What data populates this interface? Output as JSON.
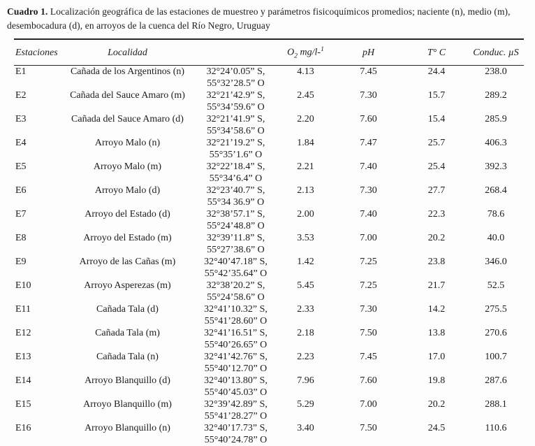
{
  "caption": {
    "label": "Cuadro 1.",
    "line1": "Localización geográfica de las estaciones de muestreo y parámetros fisicoquímicos promedios; naciente (n), medio (m),",
    "line2": "desembocadura (d), en arroyos de la cuenca del Río Negro, Uruguay"
  },
  "table": {
    "headers": {
      "station": "Estaciones",
      "locality": "Localidad",
      "coords": "",
      "o2_element": "O",
      "o2_sub": "2",
      "o2_unit": " mg/l-",
      "o2_sup": "1",
      "ph": "pH",
      "temp": "T° C",
      "conduc": "Conduc. µS"
    },
    "rows": [
      {
        "station": "E1",
        "locality": "Cañada de los Argentinos (n)",
        "coord_s": "32°24’0.05” S,",
        "coord_o": "55°32’28.5” O",
        "o2": "4.13",
        "ph": "7.45",
        "temp": "24.4",
        "conduc": "238.0"
      },
      {
        "station": "E2",
        "locality": "Cañada del Sauce Amaro (m)",
        "coord_s": "32°21’42.9” S,",
        "coord_o": "55°34’59.6” O",
        "o2": "2.45",
        "ph": "7.30",
        "temp": "15.7",
        "conduc": "289.2"
      },
      {
        "station": "E3",
        "locality": "Cañada del Sauce Amaro (d)",
        "coord_s": "32°21’41.9” S,",
        "coord_o": "55°34’58.6” O",
        "o2": "2.20",
        "ph": "7.60",
        "temp": "15.4",
        "conduc": "285.9"
      },
      {
        "station": "E4",
        "locality": "Arroyo Malo (n)",
        "coord_s": "32°21’19.2” S,",
        "coord_o": "55°35’1.6” O",
        "o2": "1.84",
        "ph": "7.47",
        "temp": "25.7",
        "conduc": "406.3"
      },
      {
        "station": "E5",
        "locality": "Arroyo Malo (m)",
        "coord_s": "32°22’18.4” S,",
        "coord_o": "55°34’6.4” O",
        "o2": "2.21",
        "ph": "7.40",
        "temp": "25.4",
        "conduc": "392.3"
      },
      {
        "station": "E6",
        "locality": "Arroyo Malo (d)",
        "coord_s": "32°23’40.7” S,",
        "coord_o": "55°34 36.9” O",
        "o2": "2.13",
        "ph": "7.30",
        "temp": "27.7",
        "conduc": "268.4"
      },
      {
        "station": "E7",
        "locality": "Arroyo del Estado (d)",
        "coord_s": "32°38’57.1” S,",
        "coord_o": "55°24’48.8” O",
        "o2": "2.00",
        "ph": "7.40",
        "temp": "22.3",
        "conduc": "78.6"
      },
      {
        "station": "E8",
        "locality": "Arroyo del Estado (m)",
        "coord_s": "32°39’11.8” S,",
        "coord_o": "55°27’38.6” O",
        "o2": "3.53",
        "ph": "7.00",
        "temp": "20.2",
        "conduc": "40.0"
      },
      {
        "station": "E9",
        "locality": "Arroyo de las Cañas (m)",
        "coord_s": "32°40’47.18” S,",
        "coord_o": "55°42’35.64” O",
        "o2": "1.42",
        "ph": "7.25",
        "temp": "23.8",
        "conduc": "346.0"
      },
      {
        "station": "E10",
        "locality": "Arroyo Asperezas (m)",
        "coord_s": "32°38’20.2” S,",
        "coord_o": "55°24’58.6” O",
        "o2": "5.45",
        "ph": "7.25",
        "temp": "21.7",
        "conduc": "52.5"
      },
      {
        "station": "E11",
        "locality": "Cañada Tala (d)",
        "coord_s": "32°41’10.32” S,",
        "coord_o": "55°41’28.60” O",
        "o2": "2.33",
        "ph": "7.30",
        "temp": "14.2",
        "conduc": "275.5"
      },
      {
        "station": "E12",
        "locality": "Cañada Tala (m)",
        "coord_s": "32°41’16.51” S,",
        "coord_o": "55°40’26.65” O",
        "o2": "2.18",
        "ph": "7.50",
        "temp": "13.8",
        "conduc": "270.6"
      },
      {
        "station": "E13",
        "locality": "Cañada Tala (n)",
        "coord_s": "32°41’42.76” S,",
        "coord_o": "55°40’12.70” O",
        "o2": "2.23",
        "ph": "7.45",
        "temp": "17.0",
        "conduc": "100.7"
      },
      {
        "station": "E14",
        "locality": "Arroyo Blanquillo (d)",
        "coord_s": "32°40’13.80” S,",
        "coord_o": "55°40’45.03” O",
        "o2": "7.96",
        "ph": "7.60",
        "temp": "19.8",
        "conduc": "287.6"
      },
      {
        "station": "E15",
        "locality": "Arroyo Blanquillo (m)",
        "coord_s": "32°39’42.89” S,",
        "coord_o": "55°41’28.27” O",
        "o2": "5.29",
        "ph": "7.00",
        "temp": "20.2",
        "conduc": "288.1"
      },
      {
        "station": "E16",
        "locality": "Arroyo Blanquillo (n)",
        "coord_s": "32°40’17.73” S,",
        "coord_o": "55°40’24.78” O",
        "o2": "3.40",
        "ph": "7.50",
        "temp": "24.5",
        "conduc": "110.6"
      }
    ]
  }
}
